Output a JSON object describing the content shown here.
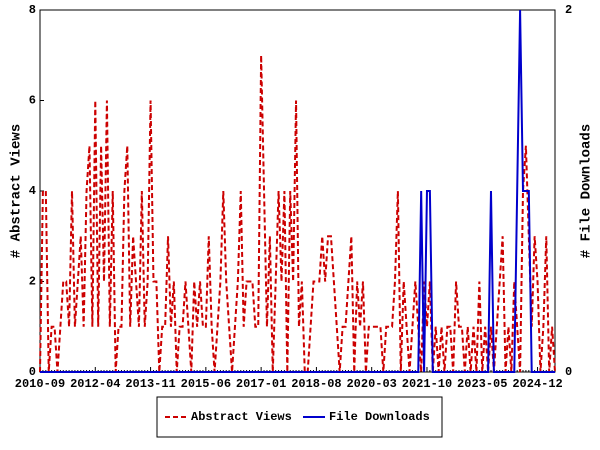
{
  "chart_data": {
    "type": "line",
    "y_label": "# Abstract Views",
    "y2_label": "# File Downloads",
    "categories": [
      "2010-09",
      null,
      null,
      null,
      null,
      null,
      null,
      null,
      null,
      null,
      null,
      null,
      null,
      null,
      null,
      null,
      null,
      null,
      null,
      "2012-04",
      null,
      null,
      null,
      null,
      null,
      null,
      null,
      null,
      null,
      null,
      null,
      null,
      null,
      null,
      null,
      null,
      null,
      null,
      "2013-11",
      null,
      null,
      null,
      null,
      null,
      null,
      null,
      null,
      null,
      null,
      null,
      null,
      null,
      null,
      null,
      null,
      null,
      null,
      "2015-06",
      null,
      null,
      null,
      null,
      null,
      null,
      null,
      null,
      null,
      null,
      null,
      null,
      null,
      null,
      null,
      null,
      null,
      null,
      "2017-01",
      null,
      null,
      null,
      null,
      null,
      null,
      null,
      null,
      null,
      null,
      null,
      null,
      null,
      null,
      null,
      null,
      null,
      null,
      "2018-08",
      null,
      null,
      null,
      null,
      null,
      null,
      null,
      null,
      null,
      null,
      null,
      null,
      null,
      null,
      null,
      null,
      null,
      null,
      "2020-03",
      null,
      null,
      null,
      null,
      null,
      null,
      null,
      null,
      null,
      null,
      null,
      null,
      null,
      null,
      null,
      null,
      null,
      null,
      "2021-10",
      null,
      null,
      null,
      null,
      null,
      null,
      null,
      null,
      null,
      null,
      null,
      null,
      null,
      null,
      null,
      null,
      null,
      null,
      "2023-05",
      null,
      null,
      null,
      null,
      null,
      null,
      null,
      null,
      null,
      null,
      null,
      null,
      null,
      null,
      null,
      null,
      null,
      null,
      "2024-12",
      null,
      null,
      null,
      null,
      null,
      null
    ],
    "series": [
      {
        "name": "Abstract Views",
        "color": "#cc0000",
        "dashed": true,
        "values": [
          0,
          4,
          4,
          0,
          1,
          1,
          0,
          1,
          2,
          2,
          1,
          4,
          1,
          2,
          3,
          1,
          4,
          5,
          1,
          6,
          1,
          5,
          2,
          6,
          1,
          4,
          0,
          1,
          1,
          4,
          5,
          1,
          3,
          2,
          1,
          4,
          1,
          2,
          6,
          2,
          2,
          0,
          1,
          1,
          3,
          1,
          2,
          0,
          1,
          1,
          2,
          1,
          0,
          2,
          1,
          2,
          1,
          1,
          3,
          1,
          0,
          1,
          2,
          4,
          2,
          1,
          0,
          1,
          2,
          4,
          1,
          2,
          2,
          2,
          1,
          1,
          7,
          4,
          1,
          3,
          0,
          2,
          4,
          2,
          4,
          0,
          4,
          2,
          6,
          1,
          2,
          0,
          0,
          1,
          2,
          2,
          2,
          3,
          2,
          3,
          3,
          2,
          1,
          0,
          1,
          1,
          2,
          3,
          0,
          2,
          1,
          2,
          0,
          1,
          1,
          1,
          1,
          1,
          0,
          1,
          1,
          1,
          2,
          4,
          0,
          2,
          1,
          0,
          1,
          2,
          1,
          0,
          2,
          1,
          2,
          0,
          1,
          0,
          1,
          0,
          1,
          1,
          0,
          2,
          1,
          1,
          0,
          1,
          0,
          1,
          0,
          2,
          0,
          1,
          0,
          1,
          0,
          1,
          2,
          3,
          0,
          1,
          0,
          2,
          1,
          0,
          4,
          5,
          3,
          1,
          3,
          2,
          0,
          1,
          3,
          0,
          1,
          0
        ]
      },
      {
        "name": "File Downloads",
        "color": "#0000cc",
        "dashed": false,
        "axis": "y2",
        "values": [
          0,
          0,
          0,
          0,
          0,
          0,
          0,
          0,
          0,
          0,
          0,
          0,
          0,
          0,
          0,
          0,
          0,
          0,
          0,
          0,
          0,
          0,
          0,
          0,
          0,
          0,
          0,
          0,
          0,
          0,
          0,
          0,
          0,
          0,
          0,
          0,
          0,
          0,
          0,
          0,
          0,
          0,
          0,
          0,
          0,
          0,
          0,
          0,
          0,
          0,
          0,
          0,
          0,
          0,
          0,
          0,
          0,
          0,
          0,
          0,
          0,
          0,
          0,
          0,
          0,
          0,
          0,
          0,
          0,
          0,
          0,
          0,
          0,
          0,
          0,
          0,
          0,
          0,
          0,
          0,
          0,
          0,
          0,
          0,
          0,
          0,
          0,
          0,
          0,
          0,
          0,
          0,
          0,
          0,
          0,
          0,
          0,
          0,
          0,
          0,
          0,
          0,
          0,
          0,
          0,
          0,
          0,
          0,
          0,
          0,
          0,
          0,
          0,
          0,
          0,
          0,
          0,
          0,
          0,
          0,
          0,
          0,
          0,
          0,
          0,
          0,
          0,
          0,
          0,
          0,
          0,
          1,
          0,
          1,
          1,
          0,
          0,
          0,
          0,
          0,
          0,
          0,
          0,
          0,
          0,
          0,
          0,
          0,
          0,
          0,
          0,
          0,
          0,
          0,
          0,
          1,
          0,
          0,
          0,
          0,
          0,
          0,
          0,
          0,
          1,
          2,
          1,
          1,
          1,
          0,
          0,
          0,
          0,
          0,
          0,
          0,
          0,
          0
        ]
      }
    ],
    "ylim": [
      0,
      8
    ],
    "yticks": [
      0,
      2,
      4,
      6,
      8
    ],
    "y2lim": [
      0,
      2
    ],
    "y2ticks": [
      0,
      2
    ],
    "grid": false,
    "legend": "bottom"
  }
}
